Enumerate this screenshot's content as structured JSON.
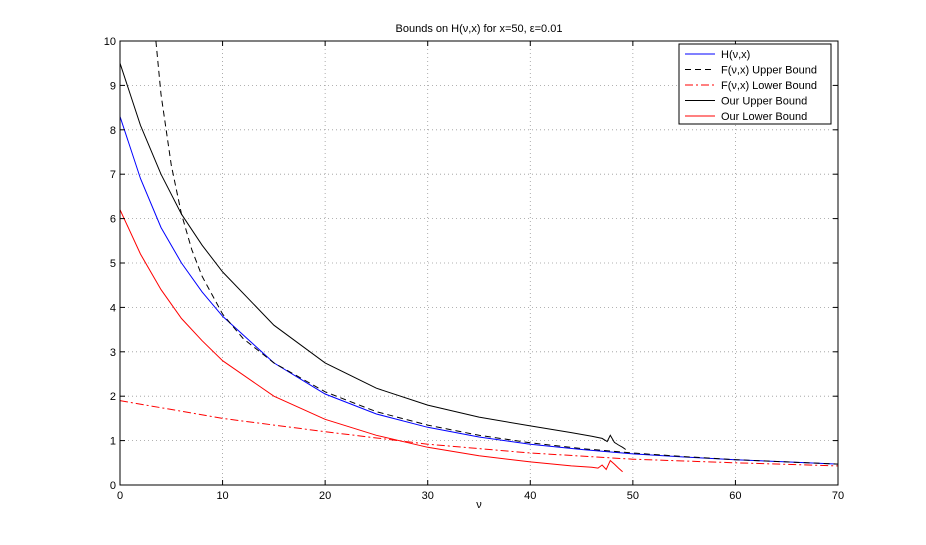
{
  "chart_data": {
    "type": "line",
    "title": "Bounds on H(ν,x) for x=50, ε=0.01",
    "xlabel": "ν",
    "ylabel": "",
    "xlim": [
      0,
      70
    ],
    "ylim": [
      0,
      10
    ],
    "xticks": [
      0,
      10,
      20,
      30,
      40,
      50,
      60,
      70
    ],
    "yticks": [
      0,
      1,
      2,
      3,
      4,
      5,
      6,
      7,
      8,
      9,
      10
    ],
    "grid": true,
    "legend_position": "top-right",
    "series": [
      {
        "name": "H(ν,x)",
        "color": "#0000ff",
        "dash": "solid",
        "x": [
          0,
          2,
          4,
          6,
          8,
          10,
          15,
          20,
          25,
          30,
          35,
          40,
          45,
          50,
          55,
          60,
          65,
          70
        ],
        "y": [
          8.3,
          6.9,
          5.8,
          5.0,
          4.35,
          3.8,
          2.75,
          2.05,
          1.6,
          1.3,
          1.08,
          0.92,
          0.8,
          0.7,
          0.63,
          0.57,
          0.52,
          0.47
        ]
      },
      {
        "name": "F(ν,x) Upper Bound",
        "color": "#000000",
        "dash": "dashed",
        "x": [
          3.5,
          4,
          5,
          6,
          7,
          8,
          10,
          12,
          15,
          20,
          25,
          30,
          35,
          40,
          45,
          50,
          55,
          60,
          65,
          70
        ],
        "y": [
          10.0,
          8.8,
          7.2,
          6.1,
          5.3,
          4.7,
          3.85,
          3.3,
          2.75,
          2.1,
          1.65,
          1.35,
          1.12,
          0.95,
          0.82,
          0.72,
          0.64,
          0.57,
          0.52,
          0.47
        ]
      },
      {
        "name": "F(ν,x) Lower Bound",
        "color": "#ff0000",
        "dash": "dashdot",
        "x": [
          0,
          10,
          20,
          30,
          40,
          50,
          60,
          70
        ],
        "y": [
          1.9,
          1.5,
          1.2,
          0.92,
          0.72,
          0.58,
          0.5,
          0.43
        ]
      },
      {
        "name": "Our Upper Bound",
        "color": "#000000",
        "dash": "solid",
        "x": [
          0,
          2,
          4,
          6,
          8,
          10,
          15,
          20,
          25,
          30,
          35,
          40,
          44,
          46,
          47,
          47.5,
          47.8,
          48.2,
          48.6,
          49.0,
          49.3
        ],
        "y": [
          9.5,
          8.1,
          7.0,
          6.1,
          5.4,
          4.8,
          3.6,
          2.75,
          2.18,
          1.8,
          1.53,
          1.33,
          1.18,
          1.1,
          1.05,
          0.98,
          1.12,
          0.96,
          0.9,
          0.85,
          0.8
        ]
      },
      {
        "name": "Our Lower Bound",
        "color": "#ff0000",
        "dash": "solid",
        "x": [
          0,
          2,
          4,
          6,
          8,
          10,
          15,
          20,
          25,
          30,
          35,
          40,
          44,
          46,
          46.6,
          47.0,
          47.4,
          47.8,
          48.2,
          48.6,
          49.0
        ],
        "y": [
          6.2,
          5.2,
          4.4,
          3.75,
          3.25,
          2.8,
          2.0,
          1.48,
          1.12,
          0.85,
          0.66,
          0.52,
          0.43,
          0.4,
          0.38,
          0.45,
          0.35,
          0.55,
          0.47,
          0.38,
          0.3
        ]
      }
    ]
  }
}
